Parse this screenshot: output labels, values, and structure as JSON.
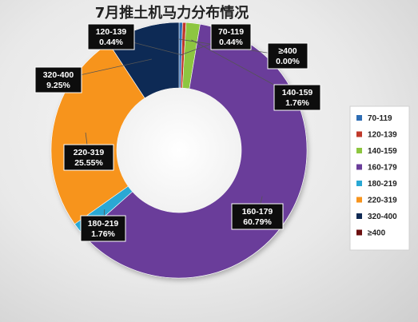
{
  "chart_data": {
    "type": "pie",
    "variant": "donut",
    "title": "7月推土机马力分布情况",
    "legend_placement": "right",
    "categories": [
      "70-119",
      "120-139",
      "140-159",
      "160-179",
      "180-219",
      "220-319",
      "320-400",
      "≥400"
    ],
    "values": [
      0.44,
      0.44,
      1.76,
      60.79,
      1.76,
      25.55,
      9.25,
      0.0
    ],
    "value_labels": [
      "0.44%",
      "0.44%",
      "1.76%",
      "60.79%",
      "1.76%",
      "25.55%",
      "9.25%",
      "0.00%"
    ],
    "colors": [
      "#2e6db4",
      "#c0392b",
      "#8dc63f",
      "#6a3d9a",
      "#29a8d4",
      "#f7941d",
      "#102a54",
      "#6b0f0f"
    ]
  }
}
